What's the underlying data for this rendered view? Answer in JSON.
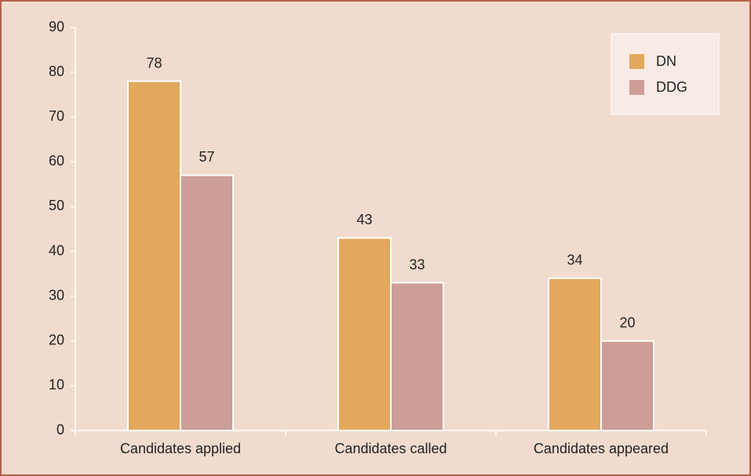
{
  "chart_data": {
    "type": "bar",
    "categories": [
      "Candidates applied",
      "Candidates called",
      "Candidates appeared"
    ],
    "series": [
      {
        "name": "DN",
        "color": "#e3a85b",
        "values": [
          78,
          43,
          34
        ]
      },
      {
        "name": "DDG",
        "color": "#cd9e98",
        "values": [
          57,
          33,
          20
        ]
      }
    ],
    "ylim": [
      0,
      90
    ],
    "yticks": [
      0,
      10,
      20,
      30,
      40,
      50,
      60,
      70,
      80,
      90
    ],
    "legend": "top-right"
  }
}
